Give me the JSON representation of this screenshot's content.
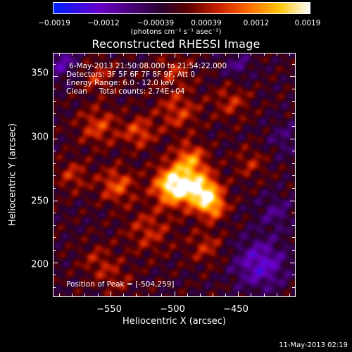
{
  "colorbar": {
    "ticks": [
      "-0.0019",
      "-0.0012",
      "-0.00039",
      "0.00039",
      "0.0012",
      "0.0019"
    ],
    "units": "(photons cm⁻² s⁻¹ asec⁻²)",
    "colors": [
      "#0020ff",
      "#6a00c8",
      "#2a0030",
      "#5a0000",
      "#c81e00",
      "#ff6a00",
      "#ffc400",
      "#ffffff"
    ]
  },
  "title": "Reconstructed RHESSI Image",
  "info": {
    "time_range": "6-May-2013 21:50:08.000 to 21:54:22.000",
    "detectors": "Detectors: 3F 5F 6F 7F 8F 9F, Att 0",
    "energy": "Energy Range: 6.0 - 12.0 keV",
    "clean": "Clean     Total counts: 2.74E+04",
    "peak": "Position of Peak = [-504,259]"
  },
  "axes": {
    "xlabel": "Heliocentric X (arcsec)",
    "ylabel": "Heliocentric Y (arcsec)",
    "xticks": [
      -550,
      -500,
      -450
    ],
    "yticks": [
      200,
      250,
      300,
      350
    ],
    "xlim": [
      -595,
      -405
    ],
    "ylim": [
      172,
      369
    ]
  },
  "footer": "11-May-2013 02:19"
}
